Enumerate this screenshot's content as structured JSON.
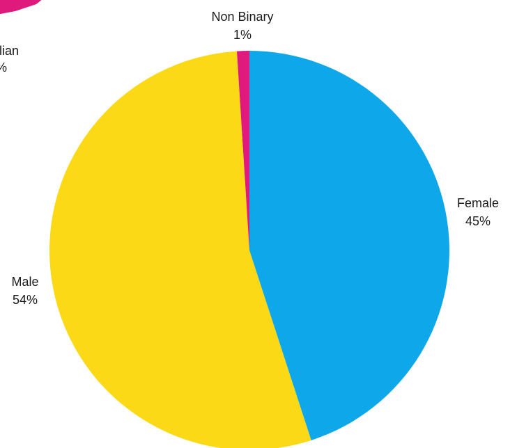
{
  "chart_data": {
    "type": "pie",
    "slices": [
      {
        "label": "Female",
        "value": 45,
        "value_label": "45%",
        "color": "#0ea8ea"
      },
      {
        "label": "Male",
        "value": 54,
        "value_label": "54%",
        "color": "#fcd916"
      },
      {
        "label": "Non Binary",
        "value": 1,
        "value_label": "1%",
        "color": "#e0197d"
      }
    ],
    "start_angle": "12 o'clock",
    "direction": "clockwise"
  },
  "partial_chart": {
    "label": "alian",
    "value_label": "%",
    "color": "#e0197d"
  }
}
